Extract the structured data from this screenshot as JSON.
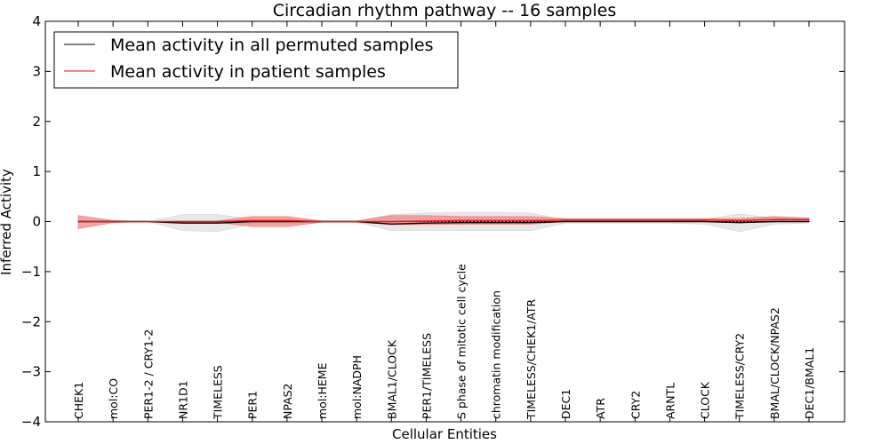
{
  "chart_data": {
    "type": "line",
    "title": "Circadian rhythm pathway -- 16 samples",
    "xlabel": "Cellular Entities",
    "ylabel": "Inferred Activity",
    "ylim": [
      -4,
      4
    ],
    "yticks": [
      4,
      3,
      2,
      1,
      0,
      -1,
      -2,
      -3,
      -4
    ],
    "ytick_labels": [
      "4",
      "3",
      "2",
      "1",
      "0",
      "−1",
      "−2",
      "−3",
      "−4"
    ],
    "legend_position": "top-left",
    "categories": [
      "CHEK1",
      "mol:CO",
      "PER1-2 / CRY1-2",
      "NR1D1",
      "TIMELESS",
      "PER1",
      "NPAS2",
      "mol:HEME",
      "mol:NADPH",
      "BMAL1/CLOCK",
      "PER1/TIMELESS",
      "S phase of mitotic cell cycle",
      "chromatin modification",
      "TIMELESS/CHEK1/ATR",
      "DEC1",
      "ATR",
      "CRY2",
      "ARNTL",
      "CLOCK",
      "TIMELESS/CRY2",
      "BMAL/CLOCK/NPAS2",
      "DEC1/BMAL1"
    ],
    "series": [
      {
        "name": "Mean activity in all permuted samples",
        "color": "#000000",
        "values": [
          0.0,
          0.0,
          0.0,
          -0.03,
          -0.03,
          0.0,
          0.0,
          0.0,
          0.0,
          -0.05,
          -0.03,
          -0.02,
          -0.02,
          -0.02,
          0.0,
          0.0,
          0.0,
          0.0,
          0.0,
          -0.02,
          0.0,
          0.0
        ],
        "band_low": [
          -0.02,
          -0.01,
          0.0,
          -0.18,
          -0.2,
          -0.05,
          -0.05,
          -0.01,
          -0.01,
          -0.18,
          -0.18,
          -0.18,
          -0.18,
          -0.18,
          -0.03,
          -0.03,
          -0.03,
          -0.03,
          -0.05,
          -0.2,
          -0.05,
          -0.03
        ],
        "band_high": [
          0.02,
          0.01,
          0.0,
          0.14,
          0.14,
          0.05,
          0.05,
          0.01,
          0.01,
          0.14,
          0.17,
          0.18,
          0.18,
          0.17,
          0.03,
          0.03,
          0.03,
          0.03,
          0.05,
          0.15,
          0.07,
          0.03
        ],
        "band_color": "#d9d9d9"
      },
      {
        "name": "Mean activity in patient samples",
        "color": "#e31a1c",
        "values": [
          0.0,
          0.0,
          0.0,
          0.0,
          0.0,
          0.02,
          0.02,
          0.0,
          0.0,
          0.0,
          0.01,
          0.02,
          0.02,
          0.02,
          0.03,
          0.03,
          0.03,
          0.03,
          0.03,
          0.02,
          0.04,
          0.04
        ],
        "band_low": [
          -0.14,
          -0.02,
          0.0,
          -0.01,
          -0.01,
          -0.1,
          -0.1,
          -0.01,
          -0.01,
          -0.06,
          -0.06,
          -0.05,
          -0.05,
          -0.05,
          0.0,
          0.0,
          0.0,
          0.0,
          0.0,
          -0.02,
          0.0,
          0.0
        ],
        "band_high": [
          0.12,
          0.02,
          0.0,
          0.01,
          0.01,
          0.1,
          0.1,
          0.01,
          0.01,
          0.12,
          0.12,
          0.1,
          0.1,
          0.1,
          0.06,
          0.06,
          0.06,
          0.06,
          0.06,
          0.06,
          0.1,
          0.07
        ],
        "band_color": "#f28080"
      }
    ]
  }
}
